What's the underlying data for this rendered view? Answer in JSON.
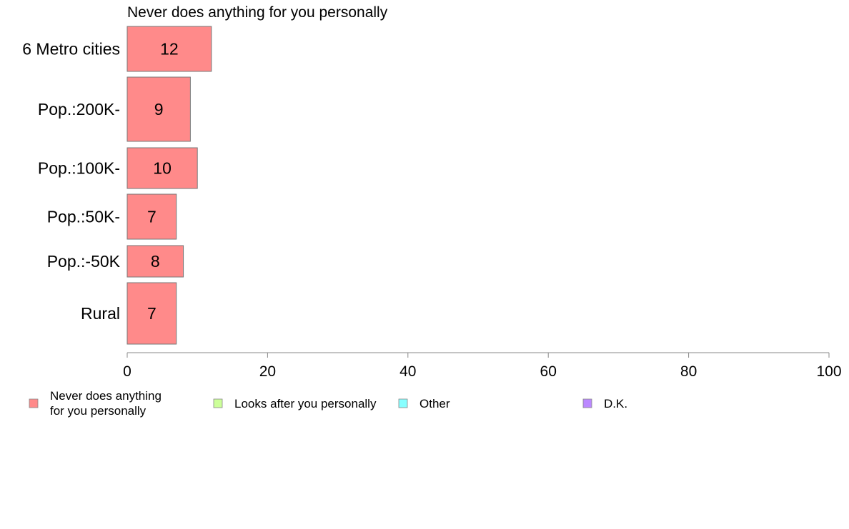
{
  "chart_data": {
    "type": "bar",
    "orientation": "horizontal",
    "title": "Never does anything for you personally",
    "categories": [
      "6 Metro cities",
      "Pop.:200K-",
      "Pop.:100K-",
      "Pop.:50K-",
      "Pop.:-50K",
      "Rural"
    ],
    "values": [
      12,
      9,
      10,
      7,
      8,
      7
    ],
    "value_labels": [
      "12",
      "9",
      "10",
      "7",
      "8",
      "7"
    ],
    "xlim": [
      0,
      100
    ],
    "xticks": [
      0,
      20,
      40,
      60,
      80,
      100
    ],
    "xtick_labels": [
      "0",
      "20",
      "40",
      "60",
      "80",
      "100"
    ],
    "bar_color": "#ff8a8a",
    "grid": false,
    "legend_position": "bottom",
    "legend": [
      {
        "label_lines": [
          "Never does anything",
          "for you personally"
        ],
        "color": "#ff8a8a"
      },
      {
        "label_lines": [
          "Looks after you personally"
        ],
        "color": "#ccff99"
      },
      {
        "label_lines": [
          "Other"
        ],
        "color": "#88ffff"
      },
      {
        "label_lines": [
          "D.K."
        ],
        "color": "#bb88ff"
      }
    ]
  }
}
